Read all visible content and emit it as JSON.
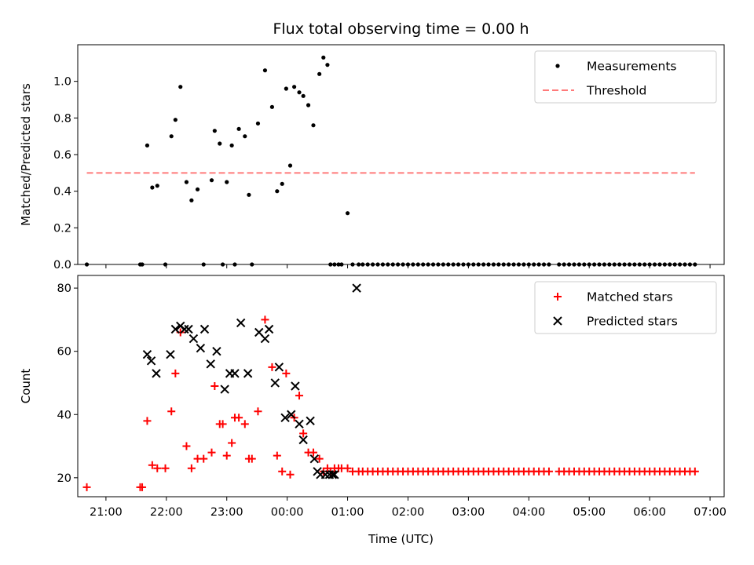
{
  "chart_data": [
    {
      "type": "scatter",
      "title": "Flux total observing time = 0.00 h",
      "ylabel": "Matched/Predicted stars",
      "xlabel": "",
      "xlim": [
        "20:32",
        "07:14"
      ],
      "ylim": [
        0,
        1.2
      ],
      "yticks": [
        0.0,
        0.2,
        0.4,
        0.6,
        0.8,
        1.0
      ],
      "ytick_labels": [
        "0.0",
        "0.2",
        "0.4",
        "0.6",
        "0.8",
        "1.0"
      ],
      "legend_position": "top-right",
      "legend": [
        "Measurements",
        "Threshold"
      ],
      "series": [
        {
          "name": "Measurements",
          "marker": "dot",
          "color": "#000000",
          "x": [
            "20:41",
            "21:34",
            "21:36",
            "21:41",
            "21:46",
            "21:51",
            "21:59",
            "22:05",
            "22:09",
            "22:14",
            "22:20",
            "22:25",
            "22:31",
            "22:37",
            "22:45",
            "22:48",
            "22:53",
            "22:56",
            "23:00",
            "23:05",
            "23:08",
            "23:12",
            "23:18",
            "23:22",
            "23:25",
            "23:31",
            "23:38",
            "23:45",
            "23:50",
            "23:55",
            "23:59",
            "00:03",
            "00:07",
            "00:12",
            "00:16",
            "00:21",
            "00:26",
            "00:32",
            "00:36",
            "00:40",
            "00:43",
            "00:47",
            "00:51",
            "00:54",
            "01:00",
            "01:05",
            "01:11",
            "01:15",
            "01:20",
            "01:25",
            "01:30",
            "01:35",
            "01:40",
            "01:45",
            "01:50",
            "01:55",
            "02:00",
            "02:05",
            "02:10",
            "02:15",
            "02:20",
            "02:25",
            "02:30",
            "02:35",
            "02:40",
            "02:45",
            "02:50",
            "02:55",
            "03:00",
            "03:05",
            "03:10",
            "03:15",
            "03:20",
            "03:25",
            "03:30",
            "03:35",
            "03:40",
            "03:45",
            "03:50",
            "03:55",
            "04:00",
            "04:05",
            "04:10",
            "04:15",
            "04:20",
            "04:30",
            "04:35",
            "04:40",
            "04:45",
            "04:50",
            "04:55",
            "05:00",
            "05:05",
            "05:10",
            "05:15",
            "05:20",
            "05:25",
            "05:30",
            "05:35",
            "05:40",
            "05:45",
            "05:50",
            "05:55",
            "06:00",
            "06:05",
            "06:10",
            "06:15",
            "06:20",
            "06:25",
            "06:30",
            "06:35",
            "06:40",
            "06:45"
          ],
          "y": [
            0,
            0,
            0,
            0.65,
            0.42,
            0.43,
            0,
            0.7,
            0.79,
            0.97,
            0.45,
            0.35,
            0.41,
            0,
            0.46,
            0.73,
            0.66,
            0,
            0.45,
            0.65,
            0,
            0.74,
            0.7,
            0.38,
            0,
            0.77,
            1.06,
            0.86,
            0.4,
            0.44,
            0.96,
            0.54,
            0.97,
            0.94,
            0.92,
            0.87,
            0.76,
            1.04,
            1.13,
            1.09,
            0,
            0,
            0,
            0,
            0.28,
            0,
            0,
            0,
            0,
            0,
            0,
            0,
            0,
            0,
            0,
            0,
            0,
            0,
            0,
            0,
            0,
            0,
            0,
            0,
            0,
            0,
            0,
            0,
            0,
            0,
            0,
            0,
            0,
            0,
            0,
            0,
            0,
            0,
            0,
            0,
            0,
            0,
            0,
            0,
            0,
            0,
            0,
            0,
            0,
            0,
            0,
            0,
            0,
            0,
            0,
            0,
            0,
            0,
            0,
            0,
            0,
            0,
            0,
            0,
            0,
            0,
            0,
            0,
            0,
            0,
            0,
            0,
            0
          ]
        },
        {
          "name": "Threshold",
          "style": "dashed",
          "color": "#ff7a7a",
          "x": [
            "20:41",
            "06:45"
          ],
          "y": [
            0.5,
            0.5
          ]
        }
      ]
    },
    {
      "type": "scatter",
      "title": "",
      "ylabel": "Count",
      "xlabel": "Time (UTC)",
      "xlim": [
        "20:32",
        "07:14"
      ],
      "ylim": [
        14,
        84
      ],
      "yticks": [
        20,
        40,
        60,
        80
      ],
      "ytick_labels": [
        "20",
        "40",
        "60",
        "80"
      ],
      "xticks": [
        "21:00",
        "22:00",
        "23:00",
        "00:00",
        "01:00",
        "02:00",
        "03:00",
        "04:00",
        "05:00",
        "06:00",
        "07:00"
      ],
      "legend_position": "top-right",
      "legend": [
        "Matched stars",
        "Predicted stars"
      ],
      "series": [
        {
          "name": "Matched stars",
          "marker": "plus",
          "color": "#ff0000",
          "x": [
            "20:41",
            "21:34",
            "21:36",
            "21:41",
            "21:46",
            "21:51",
            "21:59",
            "22:05",
            "22:09",
            "22:14",
            "22:20",
            "22:25",
            "22:31",
            "22:37",
            "22:45",
            "22:48",
            "22:53",
            "22:56",
            "23:00",
            "23:05",
            "23:08",
            "23:12",
            "23:18",
            "23:22",
            "23:25",
            "23:31",
            "23:38",
            "23:45",
            "23:50",
            "23:55",
            "23:59",
            "00:03",
            "00:07",
            "00:12",
            "00:16",
            "00:21",
            "00:26",
            "00:32",
            "00:36",
            "00:40",
            "00:43",
            "00:47",
            "00:51",
            "00:54",
            "01:00",
            "01:05",
            "01:11",
            "01:15",
            "01:20",
            "01:25",
            "01:30",
            "01:35",
            "01:40",
            "01:45",
            "01:50",
            "01:55",
            "02:00",
            "02:05",
            "02:10",
            "02:15",
            "02:20",
            "02:25",
            "02:30",
            "02:35",
            "02:40",
            "02:45",
            "02:50",
            "02:55",
            "03:00",
            "03:05",
            "03:10",
            "03:15",
            "03:20",
            "03:25",
            "03:30",
            "03:35",
            "03:40",
            "03:45",
            "03:50",
            "03:55",
            "04:00",
            "04:05",
            "04:10",
            "04:15",
            "04:20",
            "04:30",
            "04:35",
            "04:40",
            "04:45",
            "04:50",
            "04:55",
            "05:00",
            "05:05",
            "05:10",
            "05:15",
            "05:20",
            "05:25",
            "05:30",
            "05:35",
            "05:40",
            "05:45",
            "05:50",
            "05:55",
            "06:00",
            "06:05",
            "06:10",
            "06:15",
            "06:20",
            "06:25",
            "06:30",
            "06:35",
            "06:40",
            "06:45"
          ],
          "y": [
            17,
            17,
            17,
            38,
            24,
            23,
            23,
            41,
            53,
            66,
            30,
            23,
            26,
            26,
            28,
            49,
            37,
            37,
            27,
            31,
            39,
            39,
            37,
            26,
            26,
            41,
            70,
            55,
            27,
            22,
            53,
            21,
            39,
            46,
            34,
            28,
            28,
            26,
            22,
            23,
            22,
            23,
            23,
            23,
            23,
            22,
            22,
            22,
            22,
            22,
            22,
            22,
            22,
            22,
            22,
            22,
            22,
            22,
            22,
            22,
            22,
            22,
            22,
            22,
            22,
            22,
            22,
            22,
            22,
            22,
            22,
            22,
            22,
            22,
            22,
            22,
            22,
            22,
            22,
            22,
            22,
            22,
            22,
            22,
            22,
            22,
            22,
            22,
            22,
            22,
            22,
            22,
            22,
            22,
            22,
            22,
            22,
            22,
            22,
            22,
            22,
            22,
            22,
            22,
            22,
            22,
            22,
            22,
            22,
            22,
            22,
            22,
            22
          ]
        },
        {
          "name": "Predicted stars",
          "marker": "x",
          "color": "#000000",
          "x": [
            "21:41",
            "21:45",
            "21:50",
            "22:04",
            "22:09",
            "22:14",
            "22:18",
            "22:22",
            "22:27",
            "22:34",
            "22:38",
            "22:44",
            "22:50",
            "22:58",
            "23:03",
            "23:08",
            "23:14",
            "23:21",
            "23:32",
            "23:38",
            "23:42",
            "23:48",
            "23:52",
            "23:58",
            "00:04",
            "00:08",
            "00:12",
            "00:16",
            "00:23",
            "00:27",
            "00:30",
            "00:33",
            "00:38",
            "00:42",
            "00:45",
            "00:47",
            "01:09"
          ],
          "y": [
            59,
            57,
            53,
            59,
            67,
            68,
            67,
            67,
            64,
            61,
            67,
            56,
            60,
            48,
            53,
            53,
            69,
            53,
            66,
            64,
            67,
            50,
            55,
            39,
            40,
            49,
            37,
            32,
            38,
            26,
            22,
            21,
            21,
            21,
            21,
            21,
            80
          ]
        }
      ]
    }
  ]
}
